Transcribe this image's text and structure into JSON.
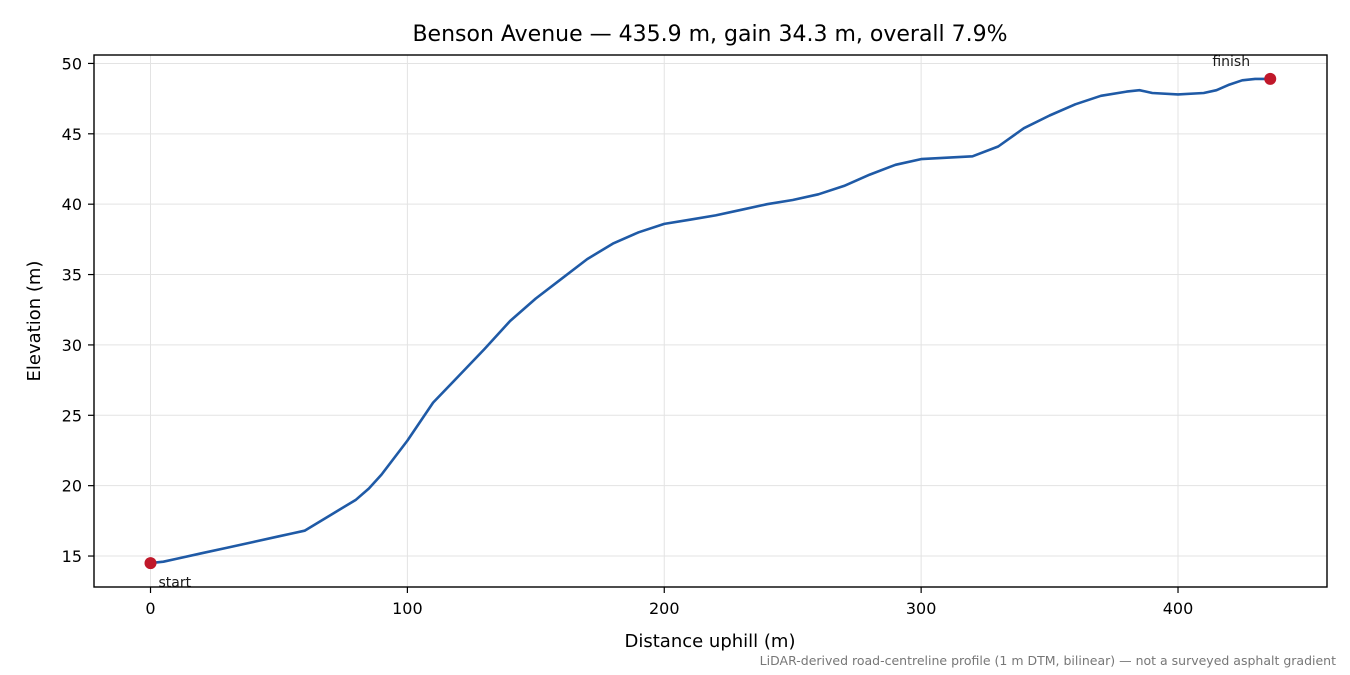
{
  "chart_data": {
    "type": "line",
    "title": "Benson Avenue — 435.9 m, gain 34.3 m, overall 7.9%",
    "xlabel": "Distance uphill (m)",
    "ylabel": "Elevation (m)",
    "xlim": [
      -22,
      458
    ],
    "ylim": [
      12.8,
      50.6
    ],
    "xticks": [
      0,
      100,
      200,
      300,
      400
    ],
    "yticks": [
      15,
      20,
      25,
      30,
      35,
      40,
      45,
      50
    ],
    "grid": true,
    "line_color": "#1f5aa6",
    "marker_color": "#c0182a",
    "series": [
      {
        "x": [
          0,
          5,
          10,
          20,
          30,
          40,
          50,
          55,
          60,
          70,
          80,
          85,
          90,
          100,
          110,
          120,
          130,
          140,
          150,
          160,
          170,
          180,
          190,
          200,
          210,
          220,
          230,
          240,
          250,
          260,
          270,
          280,
          290,
          300,
          310,
          320,
          330,
          340,
          350,
          360,
          370,
          380,
          385,
          390,
          400,
          410,
          415,
          420,
          425,
          430,
          435.9
        ],
        "y": [
          14.5,
          14.6,
          14.8,
          15.2,
          15.6,
          16.0,
          16.4,
          16.6,
          16.8,
          17.9,
          19.0,
          19.8,
          20.8,
          23.2,
          25.9,
          27.8,
          29.7,
          31.7,
          33.3,
          34.7,
          36.1,
          37.2,
          38.0,
          38.6,
          38.9,
          39.2,
          39.6,
          40.0,
          40.3,
          40.7,
          41.3,
          42.1,
          42.8,
          43.2,
          43.3,
          43.4,
          44.1,
          45.4,
          46.3,
          47.1,
          47.7,
          48.0,
          48.1,
          47.9,
          47.8,
          47.9,
          48.1,
          48.5,
          48.8,
          48.9,
          48.9
        ]
      }
    ],
    "annotations": [
      {
        "label": "start",
        "x": 0,
        "y": 14.5
      },
      {
        "label": "finish",
        "x": 435.9,
        "y": 48.9
      }
    ],
    "footnote": "LiDAR-derived road-centreline profile (1 m DTM, bilinear) — not a surveyed asphalt gradient"
  }
}
